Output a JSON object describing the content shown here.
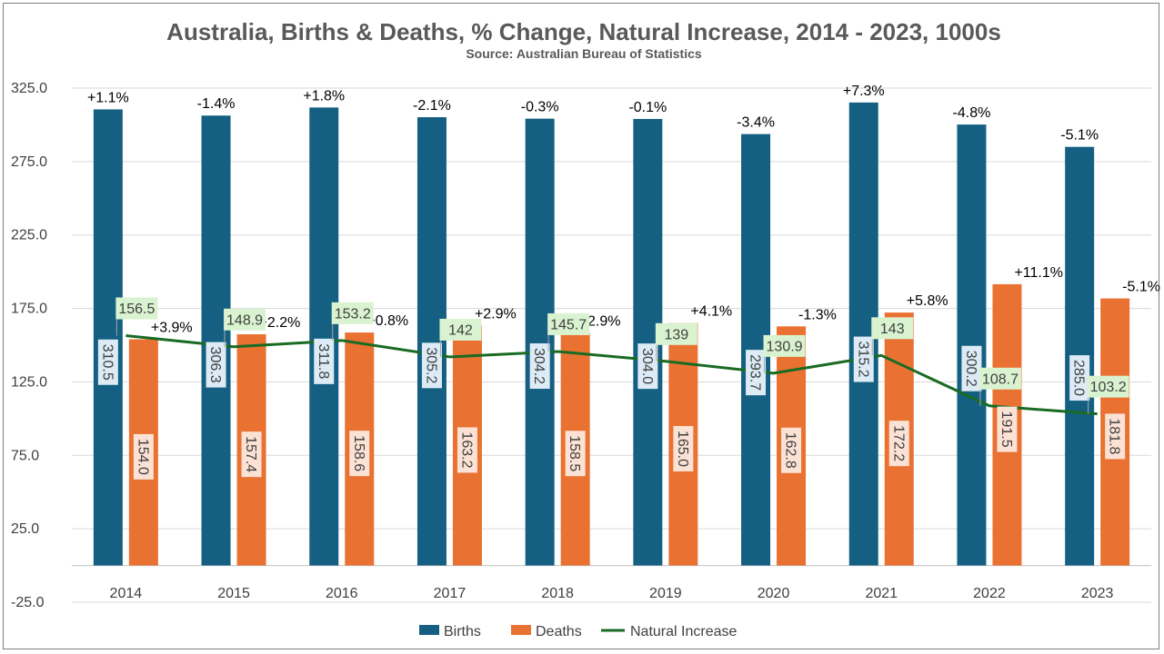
{
  "chart_data": {
    "type": "bar",
    "title": "Australia, Births & Deaths, % Change, Natural Increase, 2014 - 2023, 1000s",
    "subtitle": "Source: Australian Bureau of Statistics",
    "categories": [
      "2014",
      "2015",
      "2016",
      "2017",
      "2018",
      "2019",
      "2020",
      "2021",
      "2022",
      "2023"
    ],
    "yticks": [
      "325.0",
      "275.0",
      "225.0",
      "175.0",
      "125.0",
      "75.0",
      "25.0",
      "-25.0"
    ],
    "ylim": [
      -25,
      325
    ],
    "grid": true,
    "legend_position": "bottom",
    "series": [
      {
        "name": "Births",
        "kind": "bar",
        "color": "#156082",
        "label_bg": "#dcebf5",
        "values": [
          310.5,
          306.3,
          311.8,
          305.2,
          304.2,
          304.0,
          293.7,
          315.2,
          300.2,
          285.0
        ],
        "value_labels": [
          "310.5",
          "306.3",
          "311.8",
          "305.2",
          "304.2",
          "304.0",
          "293.7",
          "315.2",
          "300.2",
          "285.0"
        ],
        "pct_change": [
          "+1.1%",
          "-1.4%",
          "+1.8%",
          "-2.1%",
          "-0.3%",
          "-0.1%",
          "-3.4%",
          "+7.3%",
          "-4.8%",
          "-5.1%"
        ]
      },
      {
        "name": "Deaths",
        "kind": "bar",
        "color": "#e97132",
        "label_bg": "#fbe2d5",
        "values": [
          154.0,
          157.4,
          158.6,
          163.2,
          158.5,
          165.0,
          162.8,
          172.2,
          191.5,
          181.8
        ],
        "value_labels": [
          "154.0",
          "157.4",
          "158.6",
          "163.2",
          "158.5",
          "165.0",
          "162.8",
          "172.2",
          "191.5",
          "181.8"
        ],
        "pct_change": [
          "+3.9%",
          "+2.2%",
          "+0.8%",
          "+2.9%",
          "-2.9%",
          "+4.1%",
          "-1.3%",
          "+5.8%",
          "+11.1%",
          "-5.1%"
        ]
      },
      {
        "name": "Natural Increase",
        "kind": "line",
        "color": "#196b24",
        "label_bg": "#d9f2d0",
        "values": [
          156.5,
          148.9,
          153.2,
          142,
          145.7,
          139,
          130.9,
          143,
          108.7,
          103.2
        ],
        "value_labels": [
          "156.5",
          "148.9",
          "153.2",
          "142",
          "145.7",
          "139",
          "130.9",
          "143",
          "108.7",
          "103.2"
        ]
      }
    ]
  }
}
